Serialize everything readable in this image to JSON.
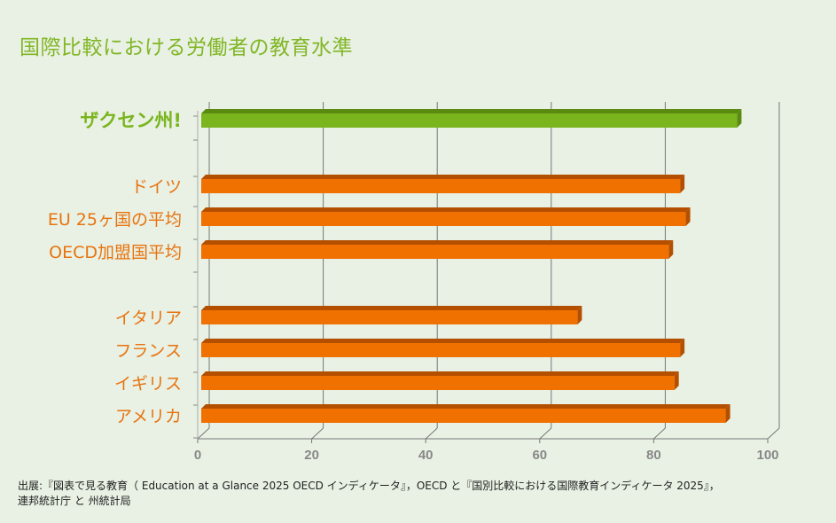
{
  "chart_data": {
    "type": "bar",
    "orientation": "horizontal",
    "title": "国際比較における労働者の教育水準",
    "categories": [
      "ザクセン州!",
      "ドイツ",
      "EU 25ヶ国の平均",
      "OECD加盟国平均",
      "イタリア",
      "フランス",
      "イギリス",
      "アメリカ"
    ],
    "values": [
      94,
      84,
      85,
      82,
      66,
      84,
      83,
      92
    ],
    "highlight": "ザクセン州!",
    "colors": {
      "highlight": "#7ab51d",
      "default": "#f07000",
      "title": "#82b626",
      "label": "#e8730f"
    },
    "xlim": [
      0,
      100
    ],
    "xticks": [
      "0",
      "20",
      "40",
      "60",
      "80",
      "100"
    ],
    "grid": true,
    "style": "3d"
  },
  "source": {
    "line1": "出展:『図表で見る教育（ Education at a Glance 2025 OECD インディケータ』，OECD と『国別比較における国際教育インディケータ 2025』，",
    "line2": "連邦統計庁 と 州統計局"
  }
}
